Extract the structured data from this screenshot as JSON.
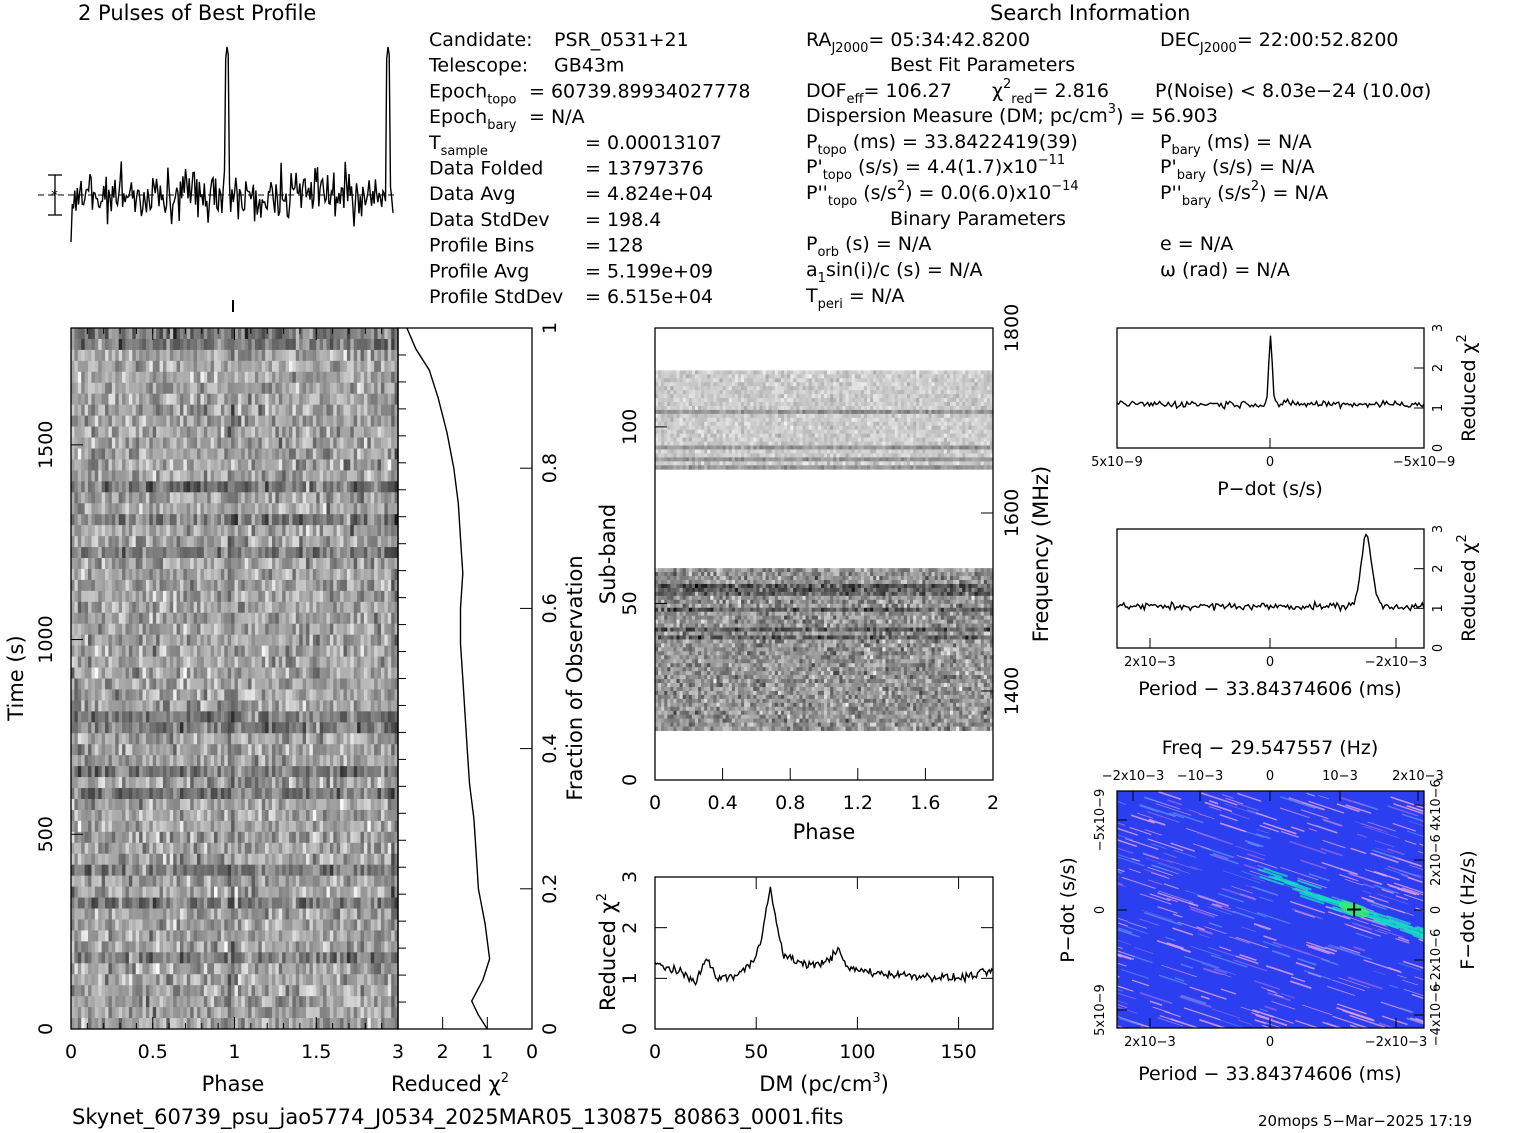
{
  "header": {
    "profile_title": "2 Pulses of Best Profile",
    "search_title": "Search Information",
    "best_fit_title": "Best Fit Parameters",
    "binary_title": "Binary Parameters"
  },
  "info_col1": [
    {
      "label": "Candidate:",
      "sub": "",
      "value": "PSR_0531+21"
    },
    {
      "label": "Telescope:",
      "sub": "",
      "value": "GB43m"
    },
    {
      "label": "Epoch",
      "sub": "topo",
      "value": "= 60739.89934027778"
    },
    {
      "label": "Epoch",
      "sub": "bary",
      "value": "= N/A"
    },
    {
      "label": "T",
      "sub": "sample",
      "value": "=   0.00013107"
    },
    {
      "label": "Data Folded",
      "sub": "",
      "value": "=   13797376"
    },
    {
      "label": "Data Avg",
      "sub": "",
      "value": "=   4.824e+04"
    },
    {
      "label": "Data StdDev",
      "sub": "",
      "value": "=   198.4"
    },
    {
      "label": "Profile Bins",
      "sub": "",
      "value": "=   128"
    },
    {
      "label": "Profile Avg",
      "sub": "",
      "value": "=   5.199e+09"
    },
    {
      "label": "Profile StdDev",
      "sub": "",
      "value": "=   6.515e+04"
    }
  ],
  "info_col2": {
    "ra_label": "RA",
    "ra_sub": "J2000",
    "ra_value": "= 05:34:42.8200",
    "dec_label": "DEC",
    "dec_sub": "J2000",
    "dec_value": "= 22:00:52.8200",
    "dof_label": "DOF",
    "dof_sub": "eff",
    "dof_value": "= 106.27",
    "chi_label": "χ",
    "chi_sup": "2",
    "chi_sub": "red",
    "chi_value": "= 2.816",
    "pnoise": "P(Noise) < 8.03e−24   (10.0σ)",
    "dm_label": "Dispersion Measure (DM; pc/cm",
    "dm_sup": "3",
    "dm_value": ") = 56.903",
    "ptopo_label": "P",
    "ptopo_sub": "topo",
    "ptopo_value": " (ms) =  33.8422419(39)",
    "pbary_label": "P",
    "pbary_sub": "bary",
    "pbary_value": " (ms) = N/A",
    "pdtopo_label": "P'",
    "pdtopo_sub": "topo",
    "pdtopo_value": " (s/s) =  4.4(1.7)x10",
    "pdtopo_exp": "−11",
    "pdbary_label": "P'",
    "pdbary_sub": "bary",
    "pdbary_value": " (s/s) = N/A",
    "pddtopo_label": "P''",
    "pddtopo_sub": "topo",
    "pddtopo_value": " (s/s",
    "pddtopo_sup": "2",
    "pddtopo_value2": ") = 0.0(6.0)x10",
    "pddtopo_exp": "−14",
    "pddbary_label": "P''",
    "pddbary_sub": "bary",
    "pddbary_value": " (s/s",
    "pddbary_sup": "2",
    "pddbary_value2": ") = N/A",
    "porb_label": "P",
    "porb_sub": "orb",
    "porb_value": " (s) = N/A",
    "e_value": "e = N/A",
    "a1_label": "a",
    "a1_sub": "1",
    "a1_value": "sin(i)/c (s) = N/A",
    "omega_value": "ω (rad) = N/A",
    "tperi_label": "T",
    "tperi_sub": "peri",
    "tperi_value": " = N/A"
  },
  "footer": {
    "filename": "Skynet_60739_psu_jao5774_J0534_2025MAR05_130875_80863_0001.fits",
    "stamp": "20mops   5−Mar−2025 17:19"
  },
  "colors": {
    "greyscale_dark": "#000000",
    "background": "#ffffff",
    "pp_low": "#2b3ef0",
    "pp_mid": "#e7a2e8",
    "pp_high": "#17d9c5"
  },
  "chart_data": [
    {
      "type": "line",
      "id": "profile",
      "title": "2 Pulses of Best Profile",
      "x_range": [
        0,
        2
      ],
      "pulse_phase": [
        0.97,
        1.97
      ],
      "note_marker": "error bar at left, dashed mean line"
    },
    {
      "type": "heatmap",
      "id": "time_phase",
      "xlabel": "Phase",
      "ylabel": "Time (s)",
      "x_ticks": [
        "0",
        "0.5",
        "1",
        "1.5"
      ],
      "y_ticks": [
        "0",
        "500",
        "1000",
        "1500"
      ],
      "x_range": [
        0,
        2
      ],
      "y_range": [
        0,
        1800
      ],
      "colormap": "greyscale"
    },
    {
      "type": "line",
      "id": "chi_vs_time",
      "xlabel": "Reduced χ2",
      "ylabel": "Fraction of Observation",
      "x_ticks": [
        "3",
        "2",
        "1",
        "0"
      ],
      "y_ticks": [
        "0",
        "0.2",
        "0.4",
        "0.6",
        "0.8",
        "1"
      ],
      "x_range": [
        3,
        0
      ],
      "y_range": [
        0,
        1
      ],
      "points": [
        [
          1.0,
          0.0
        ],
        [
          1.2,
          0.02
        ],
        [
          1.35,
          0.04
        ],
        [
          1.1,
          0.07
        ],
        [
          0.95,
          0.1
        ],
        [
          1.05,
          0.15
        ],
        [
          1.2,
          0.2
        ],
        [
          1.25,
          0.25
        ],
        [
          1.3,
          0.3
        ],
        [
          1.4,
          0.35
        ],
        [
          1.45,
          0.4
        ],
        [
          1.5,
          0.45
        ],
        [
          1.55,
          0.5
        ],
        [
          1.6,
          0.55
        ],
        [
          1.6,
          0.6
        ],
        [
          1.55,
          0.65
        ],
        [
          1.6,
          0.7
        ],
        [
          1.65,
          0.75
        ],
        [
          1.75,
          0.8
        ],
        [
          1.9,
          0.85
        ],
        [
          2.1,
          0.9
        ],
        [
          2.3,
          0.94
        ],
        [
          2.6,
          0.97
        ],
        [
          2.8,
          1.0
        ]
      ]
    },
    {
      "type": "heatmap",
      "id": "subband_phase",
      "xlabel": "Phase",
      "ylabel": "Sub-band",
      "y2label": "Frequency (MHz)",
      "x_ticks": [
        "0",
        "0.4",
        "0.8",
        "1.2",
        "1.6",
        "2"
      ],
      "y_ticks": [
        "0",
        "50",
        "100"
      ],
      "y2_ticks": [
        "1400",
        "1600",
        "1800"
      ],
      "x_range": [
        0,
        2
      ],
      "y_range": [
        0,
        128
      ],
      "bands": [
        [
          14,
          60
        ],
        [
          88,
          116
        ]
      ],
      "colormap": "greyscale"
    },
    {
      "type": "line",
      "id": "dm_curve",
      "xlabel": "DM (pc/cm3)",
      "ylabel": "Reduced χ2",
      "x_ticks": [
        "0",
        "50",
        "100",
        "150"
      ],
      "y_ticks": [
        "0",
        "1",
        "2",
        "3"
      ],
      "x_range": [
        0,
        167
      ],
      "y_range": [
        0,
        3
      ],
      "peak": [
        56.9,
        2.75
      ],
      "points": [
        [
          0,
          1.3
        ],
        [
          10,
          1.15
        ],
        [
          20,
          0.95
        ],
        [
          26,
          1.4
        ],
        [
          30,
          1.0
        ],
        [
          40,
          1.05
        ],
        [
          48,
          1.3
        ],
        [
          52,
          1.7
        ],
        [
          55,
          2.4
        ],
        [
          57,
          2.75
        ],
        [
          60,
          2.1
        ],
        [
          63,
          1.5
        ],
        [
          68,
          1.35
        ],
        [
          80,
          1.25
        ],
        [
          88,
          1.45
        ],
        [
          91,
          1.55
        ],
        [
          95,
          1.2
        ],
        [
          110,
          1.1
        ],
        [
          130,
          1.05
        ],
        [
          150,
          1.0
        ],
        [
          167,
          1.15
        ]
      ]
    },
    {
      "type": "line",
      "id": "pdot_curve",
      "xlabel": "P−dot (s/s)",
      "ylabel": "Reduced χ2",
      "x_ticks": [
        "5x10−9",
        "0",
        "−5x10−9"
      ],
      "y_ticks": [
        "0",
        "1",
        "2",
        "3"
      ],
      "x_range": [
        5,
        -5
      ],
      "y_range": [
        0,
        3
      ],
      "peak": [
        0,
        2.8
      ]
    },
    {
      "type": "line",
      "id": "period_curve",
      "xlabel": "Period − 33.84374606 (ms)",
      "ylabel": "Reduced χ2",
      "x_ticks": [
        "2x10−3",
        "0",
        "−2x10−3"
      ],
      "y_ticks": [
        "0",
        "1",
        "2",
        "3"
      ],
      "x_range": [
        2.4,
        -2.4
      ],
      "y_range": [
        0,
        3
      ],
      "peak": [
        -1.5,
        2.8
      ]
    },
    {
      "type": "heatmap",
      "id": "p_pdot_plane",
      "title": "Freq − 29.547557 (Hz)",
      "xlabel": "Period − 33.84374606 (ms)",
      "ylabel": "P−dot (s/s)",
      "y2label": "F−dot (Hz/s)",
      "x_ticks": [
        "2x10−3",
        "0",
        "−2x10−3"
      ],
      "x2_ticks": [
        "−2x10−3",
        "−10−3",
        "0",
        "10−3",
        "2x10−3"
      ],
      "y_ticks": [
        "−5x10−9",
        "0",
        "5x10−9"
      ],
      "y2_ticks": [
        "4x10−6",
        "2x10−6",
        "0",
        "−2x10−6",
        "−4x10−6"
      ],
      "best": [
        -1.5,
        0
      ],
      "colormap": "blue-magenta-cyan"
    }
  ]
}
